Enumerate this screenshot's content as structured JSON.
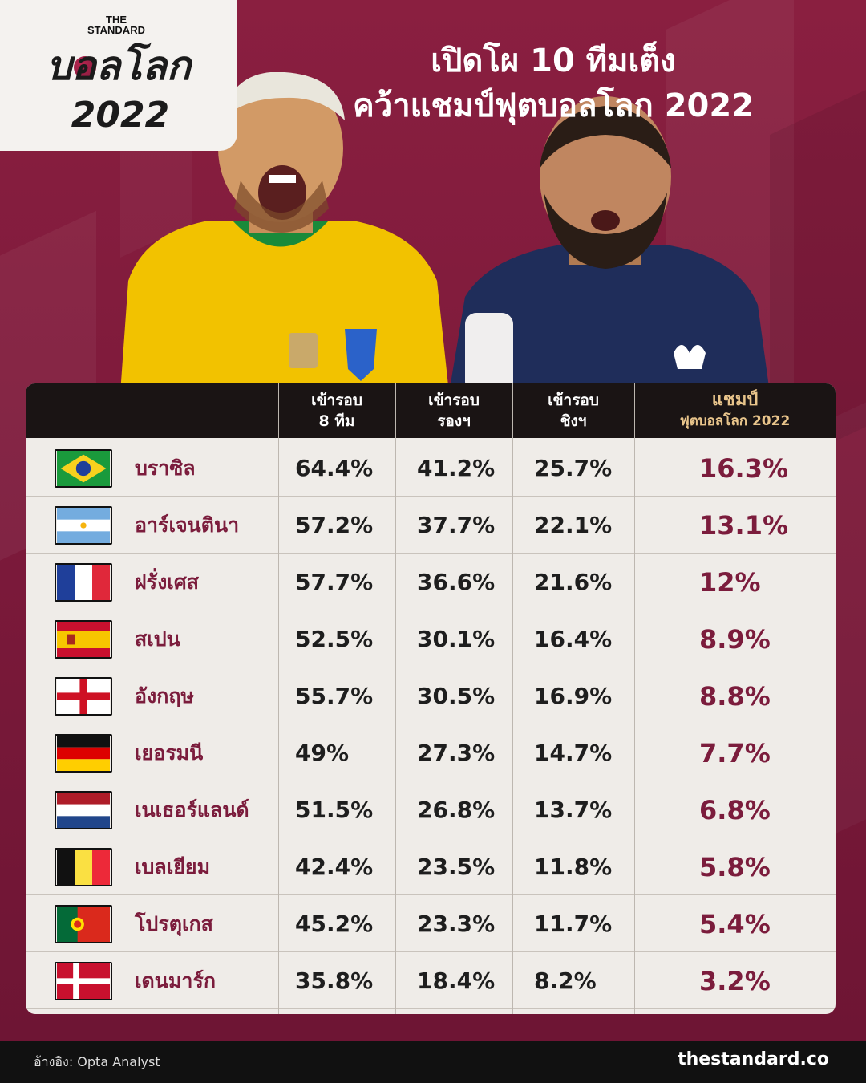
{
  "logo": {
    "brand": "THE STANDARD",
    "word": "บอลโลก",
    "year": "2022"
  },
  "title": {
    "line1": "เปิดโผ 10 ทีมเต็ง",
    "line2": "คว้าแชมป์ฟุตบอลโลก 2022"
  },
  "chart_data": {
    "type": "table",
    "columns": [
      {
        "line1": "เข้ารอบ",
        "line2": "8 ทีม"
      },
      {
        "line1": "เข้ารอบ",
        "line2": "รองฯ"
      },
      {
        "line1": "เข้ารอบ",
        "line2": "ชิงฯ"
      },
      {
        "line1": "แชมป์",
        "line2": "ฟุตบอลโลก 2022"
      }
    ],
    "rows": [
      {
        "team": "บราซิล",
        "flag": "brazil-flag",
        "values": [
          "64.4%",
          "41.2%",
          "25.7%",
          "16.3%"
        ]
      },
      {
        "team": "อาร์เจนตินา",
        "flag": "argentina-flag",
        "values": [
          "57.2%",
          "37.7%",
          "22.1%",
          "13.1%"
        ]
      },
      {
        "team": "ฝรั่งเศส",
        "flag": "france-flag",
        "values": [
          "57.7%",
          "36.6%",
          "21.6%",
          "12%"
        ]
      },
      {
        "team": "สเปน",
        "flag": "spain-flag",
        "values": [
          "52.5%",
          "30.1%",
          "16.4%",
          "8.9%"
        ]
      },
      {
        "team": "อังกฤษ",
        "flag": "england-flag",
        "values": [
          "55.7%",
          "30.5%",
          "16.9%",
          "8.8%"
        ]
      },
      {
        "team": "เยอรมนี",
        "flag": "germany-flag",
        "values": [
          "49%",
          "27.3%",
          "14.7%",
          "7.7%"
        ]
      },
      {
        "team": "เนเธอร์แลนด์",
        "flag": "netherlands-flag",
        "values": [
          "51.5%",
          "26.8%",
          "13.7%",
          "6.8%"
        ]
      },
      {
        "team": "เบลเยียม",
        "flag": "belgium-flag",
        "values": [
          "42.4%",
          "23.5%",
          "11.8%",
          "5.8%"
        ]
      },
      {
        "team": "โปรตุเกส",
        "flag": "portugal-flag",
        "values": [
          "45.2%",
          "23.3%",
          "11.7%",
          "5.4%"
        ]
      },
      {
        "team": "เดนมาร์ก",
        "flag": "denmark-flag",
        "values": [
          "35.8%",
          "18.4%",
          "8.2%",
          "3.2%"
        ]
      }
    ]
  },
  "colors": {
    "background": "#7d1a3b",
    "header": "#1a1414",
    "champion_header": "#e8c48b",
    "accent": "#7b1c3c",
    "table_body": "#efece8"
  },
  "footer": {
    "reference": "อ้างอิง: Opta Analyst",
    "site": "thestandard.co"
  }
}
